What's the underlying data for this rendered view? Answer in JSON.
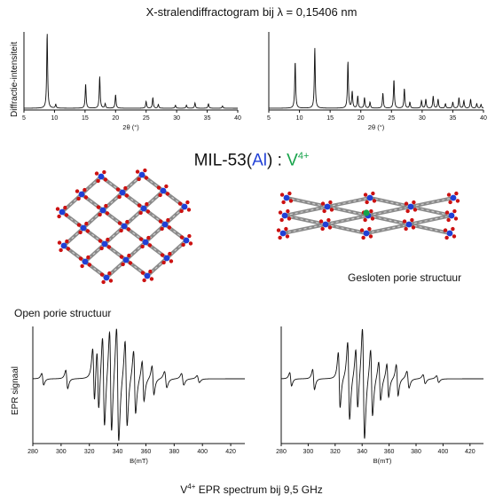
{
  "header": {
    "title": "X-stralendiffractogram bij λ = 0,15406 nm",
    "ylabel": "Diffractie-intensiteit"
  },
  "structure": {
    "name": "MIL-53",
    "open_paren": "(",
    "metal": "Al",
    "close_paren": ")",
    "separator": " : ",
    "dopant": "V",
    "dopant_charge": "4+",
    "open_label": "Open porie structuur",
    "closed_label": "Gesloten porie structuur",
    "colors": {
      "metal": "#1f3fd6",
      "dopant": "#16a34a",
      "oxygen": "#cc1111",
      "carbon": "#8a8a8a"
    }
  },
  "footer": {
    "prefix": "V",
    "charge": "4+",
    "text": " EPR spectrum bij 9,5 GHz"
  },
  "chart_data": [
    {
      "type": "line",
      "xlabel": "2θ (°)",
      "xlim": [
        5,
        40
      ],
      "xticks": [
        "5",
        "10",
        "15",
        "20",
        "25",
        "30",
        "35",
        "40"
      ],
      "peaks": [
        [
          8.8,
          1.0
        ],
        [
          10.2,
          0.05
        ],
        [
          15.1,
          0.32
        ],
        [
          17.4,
          0.42
        ],
        [
          18.3,
          0.06
        ],
        [
          20.0,
          0.18
        ],
        [
          25.0,
          0.09
        ],
        [
          26.1,
          0.14
        ],
        [
          27.0,
          0.05
        ],
        [
          29.8,
          0.04
        ],
        [
          31.6,
          0.04
        ],
        [
          33.0,
          0.07
        ],
        [
          35.2,
          0.06
        ],
        [
          37.5,
          0.03
        ]
      ]
    },
    {
      "type": "line",
      "xlabel": "2θ (°)",
      "xlim": [
        5,
        40
      ],
      "xticks": [
        "5",
        "10",
        "15",
        "20",
        "25",
        "30",
        "35",
        "40"
      ],
      "peaks": [
        [
          9.3,
          0.62
        ],
        [
          12.5,
          0.8
        ],
        [
          17.9,
          0.62
        ],
        [
          18.6,
          0.22
        ],
        [
          19.5,
          0.16
        ],
        [
          20.6,
          0.14
        ],
        [
          21.5,
          0.08
        ],
        [
          23.6,
          0.2
        ],
        [
          25.4,
          0.38
        ],
        [
          27.1,
          0.26
        ],
        [
          28.0,
          0.08
        ],
        [
          29.9,
          0.1
        ],
        [
          30.6,
          0.12
        ],
        [
          31.8,
          0.16
        ],
        [
          32.6,
          0.12
        ],
        [
          33.8,
          0.06
        ],
        [
          35.0,
          0.08
        ],
        [
          36.0,
          0.14
        ],
        [
          36.8,
          0.1
        ],
        [
          37.9,
          0.12
        ],
        [
          38.9,
          0.06
        ],
        [
          39.6,
          0.05
        ]
      ]
    },
    {
      "type": "line",
      "ylabel": "EPR signaal",
      "xlabel": "B(mT)",
      "xlim": [
        280,
        430
      ],
      "xticks": [
        "280",
        "300",
        "320",
        "340",
        "360",
        "380",
        "400",
        "420"
      ],
      "lines": [
        [
          287,
          0.1,
          1.2
        ],
        [
          304,
          0.16,
          1.2
        ],
        [
          323,
          0.5,
          1.2
        ],
        [
          326,
          0.55,
          1.2
        ],
        [
          330,
          0.8,
          1.3
        ],
        [
          335,
          0.9,
          1.3
        ],
        [
          340,
          1.0,
          1.4
        ],
        [
          346,
          0.75,
          1.3
        ],
        [
          352,
          0.55,
          1.3
        ],
        [
          358,
          0.35,
          1.2
        ],
        [
          365,
          0.25,
          1.2
        ],
        [
          374,
          0.14,
          1.4
        ],
        [
          386,
          0.1,
          1.4
        ],
        [
          397,
          0.06,
          1.4
        ]
      ]
    },
    {
      "type": "line",
      "xlabel": "B(mT)",
      "xlim": [
        280,
        430
      ],
      "xticks": [
        "280",
        "300",
        "320",
        "340",
        "360",
        "380",
        "400",
        "420"
      ],
      "lines": [
        [
          287,
          0.12,
          1.2
        ],
        [
          304,
          0.18,
          1.2
        ],
        [
          323,
          0.5,
          1.2
        ],
        [
          330,
          0.7,
          1.3
        ],
        [
          336,
          0.55,
          1.3
        ],
        [
          341,
          1.0,
          1.4
        ],
        [
          347,
          0.6,
          1.3
        ],
        [
          353,
          0.35,
          1.3
        ],
        [
          359,
          0.3,
          1.2
        ],
        [
          366,
          0.28,
          1.2
        ],
        [
          374,
          0.15,
          1.4
        ],
        [
          386,
          0.08,
          1.4
        ],
        [
          396,
          0.06,
          1.4
        ]
      ]
    }
  ]
}
